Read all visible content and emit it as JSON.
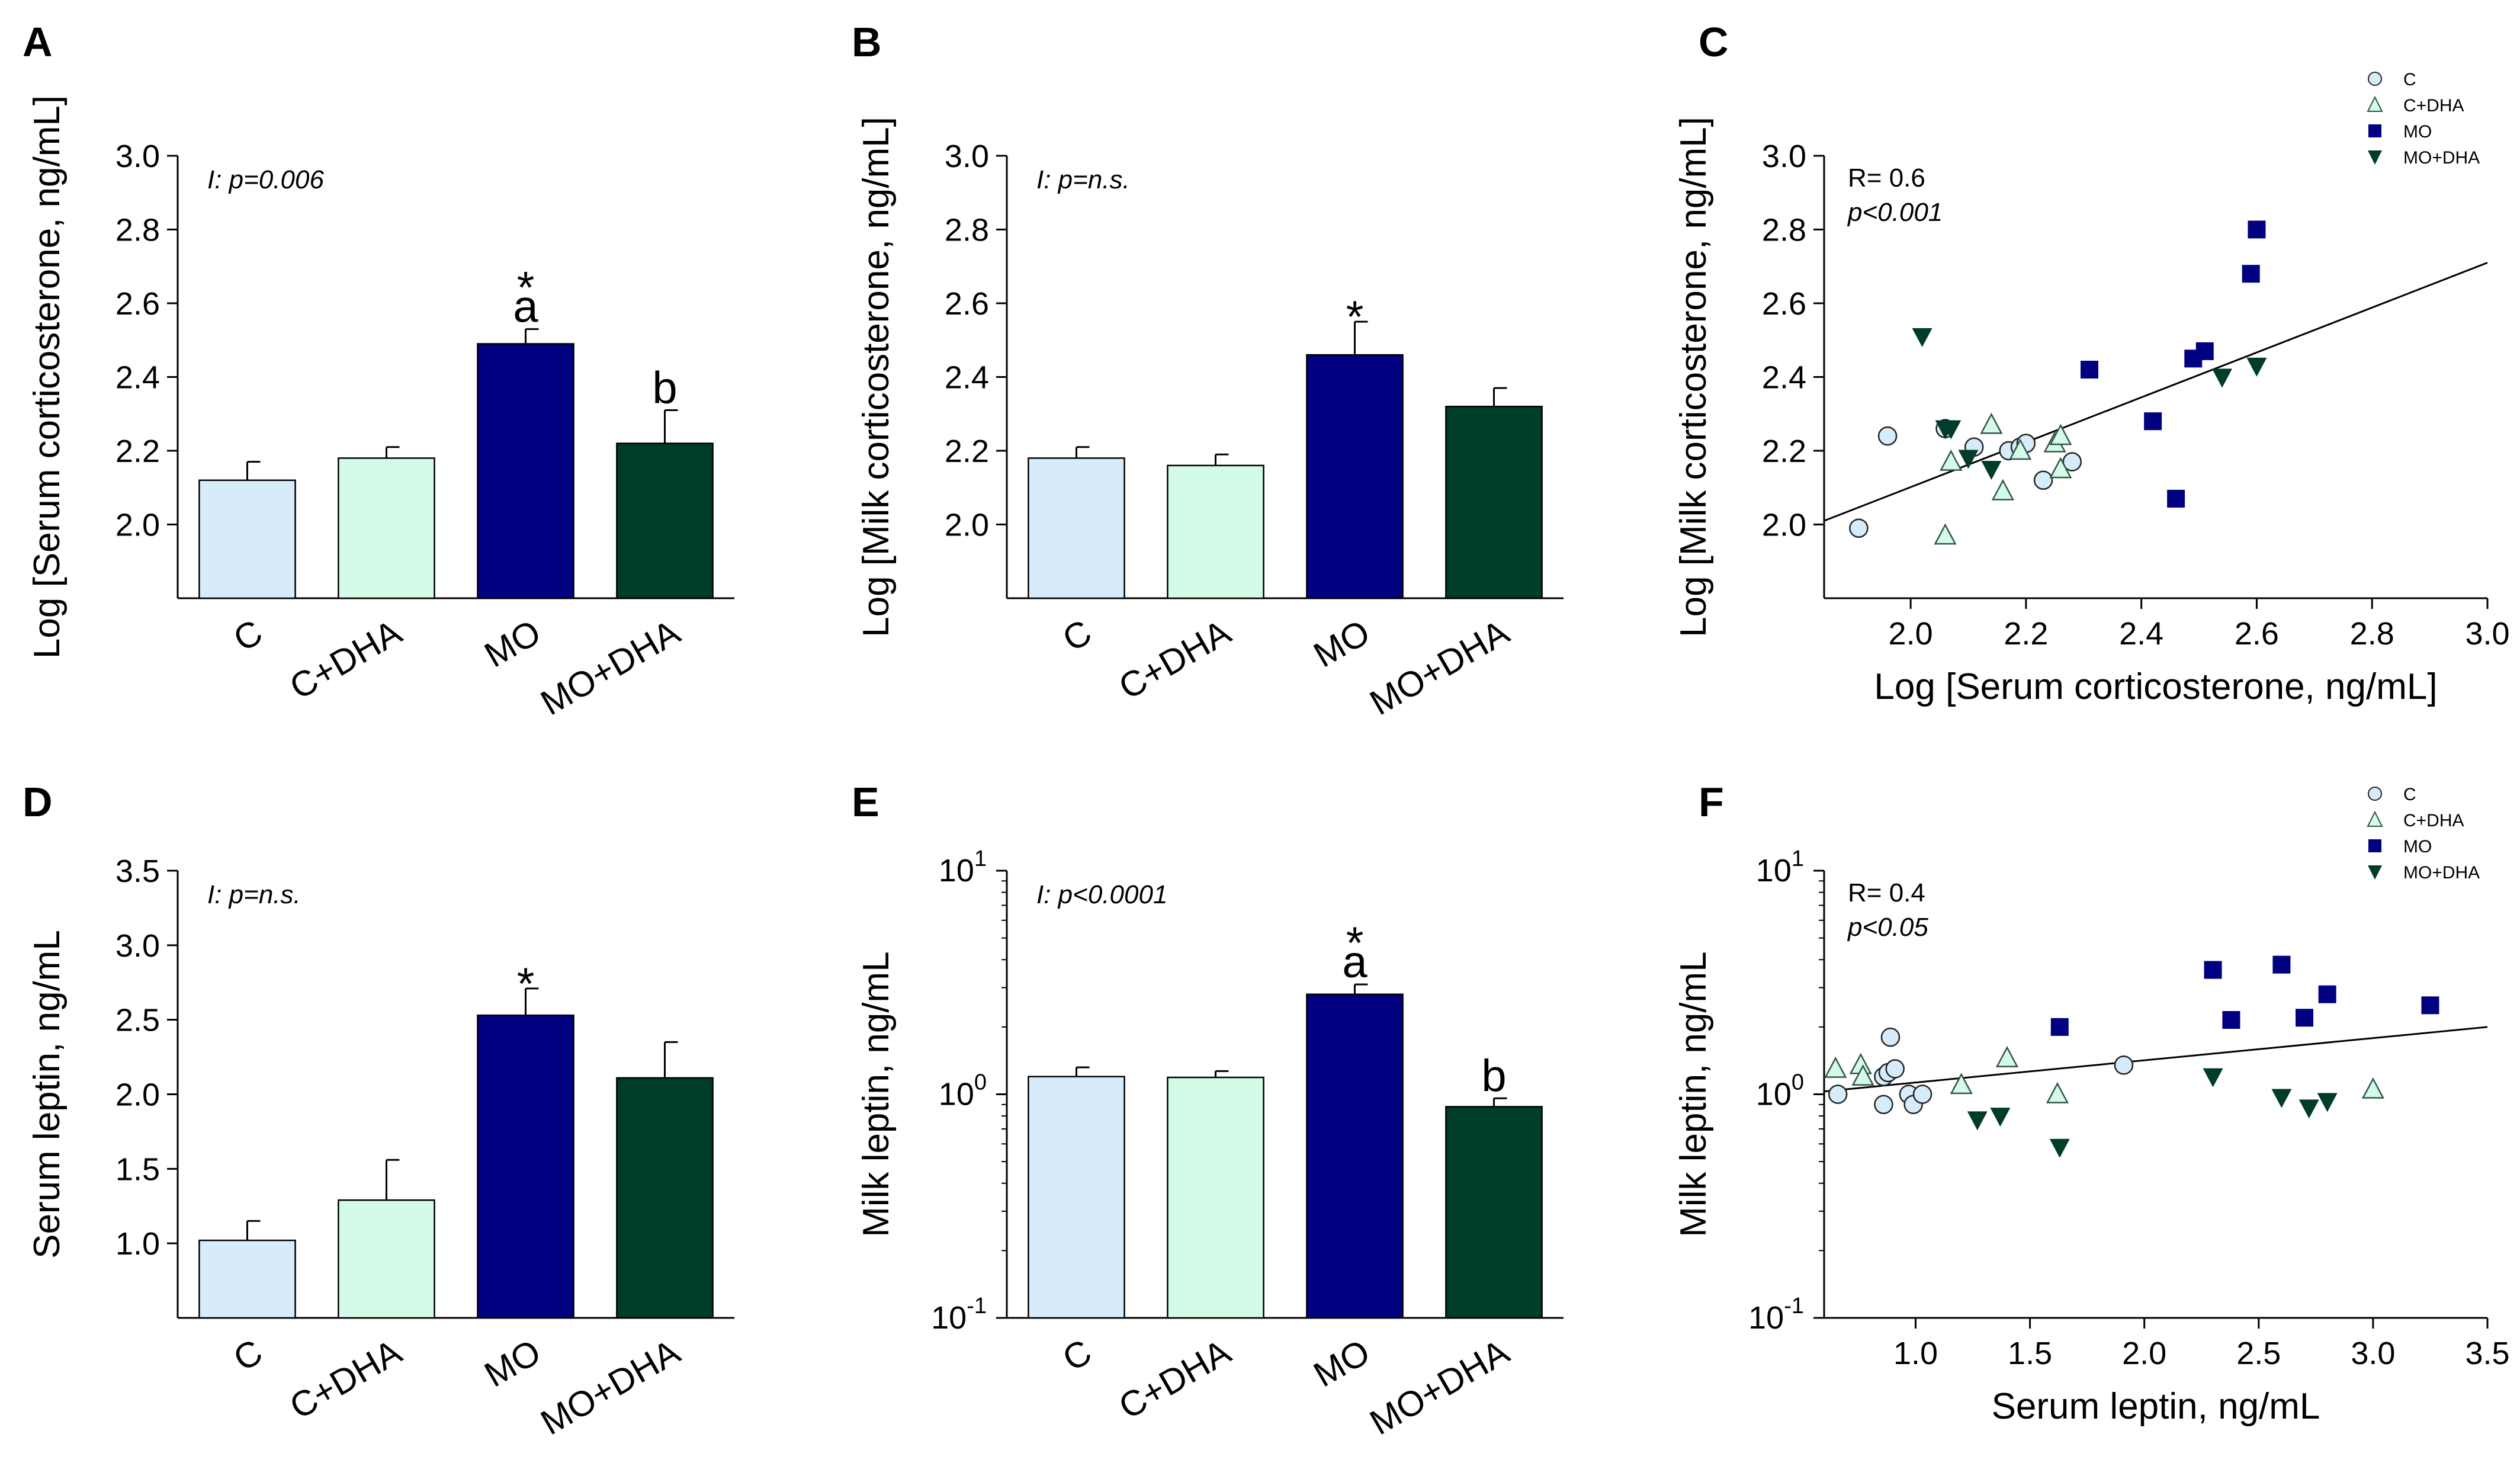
{
  "chart_data": [
    {
      "id": "A",
      "type": "bar",
      "panel_label": "A",
      "categories": [
        "C",
        "C+DHA",
        "MO",
        "MO+DHA"
      ],
      "values": [
        2.12,
        2.18,
        2.49,
        2.22
      ],
      "errors": [
        0.05,
        0.03,
        0.04,
        0.09
      ],
      "colors": [
        "#d6ecfb",
        "#d3fbe8",
        "#000080",
        "#003c2a"
      ],
      "ylabel": "Log [Serum corticosterone, ng/mL]",
      "ylim": [
        1.8,
        3.0
      ],
      "yticks": [
        "2.0",
        "2.2",
        "2.4",
        "2.6",
        "2.8",
        "3.0"
      ],
      "annotation": "I: p=0.006",
      "sig_labels": [
        {
          "category": "MO",
          "text": "*"
        },
        {
          "category": "MO",
          "text": "a"
        },
        {
          "category": "MO+DHA",
          "text": "b"
        }
      ]
    },
    {
      "id": "B",
      "type": "bar",
      "panel_label": "B",
      "categories": [
        "C",
        "C+DHA",
        "MO",
        "MO+DHA"
      ],
      "values": [
        2.18,
        2.16,
        2.46,
        2.32
      ],
      "errors": [
        0.03,
        0.03,
        0.09,
        0.05
      ],
      "colors": [
        "#d6ecfb",
        "#d3fbe8",
        "#000080",
        "#003c2a"
      ],
      "ylabel": "Log [Milk corticosterone, ng/mL]",
      "ylim": [
        1.8,
        3.0
      ],
      "yticks": [
        "2.0",
        "2.2",
        "2.4",
        "2.6",
        "2.8",
        "3.0"
      ],
      "annotation": "I: p=n.s.",
      "sig_labels": [
        {
          "category": "MO",
          "text": "*"
        }
      ]
    },
    {
      "id": "C",
      "type": "scatter",
      "panel_label": "C",
      "xlabel": "Log [Serum corticosterone, ng/mL]",
      "ylabel": "Log [Milk corticosterone, ng/mL]",
      "xlim": [
        1.85,
        3.0
      ],
      "ylim": [
        1.8,
        3.0
      ],
      "xticks": [
        "2.0",
        "2.2",
        "2.4",
        "2.6",
        "2.8",
        "3.0"
      ],
      "yticks": [
        "2.0",
        "2.2",
        "2.4",
        "2.6",
        "2.8",
        "3.0"
      ],
      "r_text": "R= 0.6",
      "p_text": "p<0.001",
      "fit": {
        "x0": 1.85,
        "y0": 2.01,
        "x1": 3.0,
        "y1": 2.71
      },
      "legend": [
        "C",
        "C+DHA",
        "MO",
        "MO+DHA"
      ],
      "series": [
        {
          "name": "C",
          "marker": "circle",
          "color": "#d6ecfb",
          "x": [
            1.91,
            1.96,
            2.06,
            2.11,
            2.17,
            2.19,
            2.2,
            2.23,
            2.28
          ],
          "y": [
            1.99,
            2.24,
            2.26,
            2.21,
            2.2,
            2.21,
            2.22,
            2.12,
            2.17
          ]
        },
        {
          "name": "C+DHA",
          "marker": "triangle-up",
          "color": "#d3fbe8",
          "x": [
            2.06,
            2.07,
            2.14,
            2.16,
            2.19,
            2.25,
            2.26,
            2.26
          ],
          "y": [
            1.97,
            2.17,
            2.27,
            2.09,
            2.2,
            2.22,
            2.24,
            2.15
          ]
        },
        {
          "name": "MO",
          "marker": "square",
          "color": "#000080",
          "x": [
            2.31,
            2.42,
            2.46,
            2.49,
            2.51,
            2.59,
            2.6
          ],
          "y": [
            2.42,
            2.28,
            2.07,
            2.45,
            2.47,
            2.68,
            2.8
          ]
        },
        {
          "name": "MO+DHA",
          "marker": "triangle-down",
          "color": "#003c2a",
          "x": [
            2.02,
            2.06,
            2.07,
            2.1,
            2.14,
            2.54,
            2.6
          ],
          "y": [
            2.51,
            2.26,
            2.26,
            2.18,
            2.15,
            2.4,
            2.43
          ]
        }
      ]
    },
    {
      "id": "D",
      "type": "bar",
      "panel_label": "D",
      "categories": [
        "C",
        "C+DHA",
        "MO",
        "MO+DHA"
      ],
      "values": [
        1.02,
        1.29,
        2.53,
        2.11
      ],
      "errors": [
        0.13,
        0.27,
        0.18,
        0.24
      ],
      "colors": [
        "#d6ecfb",
        "#d3fbe8",
        "#000080",
        "#003c2a"
      ],
      "ylabel": "Serum leptin, ng/mL",
      "ylim": [
        0.5,
        3.5
      ],
      "yticks": [
        "1.0",
        "1.5",
        "2.0",
        "2.5",
        "3.0",
        "3.5"
      ],
      "annotation": "I: p=n.s.",
      "sig_labels": [
        {
          "category": "MO",
          "text": "*"
        }
      ]
    },
    {
      "id": "E",
      "type": "bar",
      "panel_label": "E",
      "yscale": "log",
      "categories": [
        "C",
        "C+DHA",
        "MO",
        "MO+DHA"
      ],
      "values": [
        1.2,
        1.19,
        2.8,
        0.88
      ],
      "errors": [
        0.12,
        0.08,
        0.3,
        0.08
      ],
      "colors": [
        "#d6ecfb",
        "#d3fbe8",
        "#000080",
        "#003c2a"
      ],
      "ylabel": "Milk leptin, ng/mL",
      "ylim": [
        0.1,
        10
      ],
      "ytick_base": "10",
      "ytick_exponents": [
        "-1",
        "0",
        "1"
      ],
      "annotation": "I: p<0.0001",
      "sig_labels": [
        {
          "category": "MO",
          "text": "*"
        },
        {
          "category": "MO",
          "text": "a"
        },
        {
          "category": "MO+DHA",
          "text": "b"
        }
      ]
    },
    {
      "id": "F",
      "type": "scatter",
      "panel_label": "F",
      "yscale": "log",
      "xlabel": "Serum leptin, ng/mL",
      "ylabel": "Milk leptin, ng/mL",
      "xlim": [
        0.6,
        3.5
      ],
      "ylim": [
        0.1,
        10
      ],
      "xticks": [
        "1.0",
        "1.5",
        "2.0",
        "2.5",
        "3.0",
        "3.5"
      ],
      "ytick_base": "10",
      "ytick_exponents": [
        "-1",
        "0",
        "1"
      ],
      "r_text": "R= 0.4",
      "p_text": "p<0.05",
      "fit": {
        "x0": 0.6,
        "y0": 1.03,
        "x1": 3.5,
        "y1": 2.0
      },
      "legend": [
        "C",
        "C+DHA",
        "MO",
        "MO+DHA"
      ],
      "series": [
        {
          "name": "C",
          "marker": "circle",
          "color": "#d6ecfb",
          "x": [
            0.66,
            0.86,
            0.86,
            0.88,
            0.89,
            0.91,
            0.97,
            0.99,
            1.03,
            1.91
          ],
          "y": [
            1.0,
            1.2,
            0.9,
            1.25,
            1.8,
            1.3,
            1.0,
            0.9,
            1.0,
            1.35
          ]
        },
        {
          "name": "C+DHA",
          "marker": "triangle-up",
          "color": "#d3fbe8",
          "x": [
            0.65,
            0.76,
            0.77,
            1.2,
            1.4,
            1.62,
            3.0
          ],
          "y": [
            1.3,
            1.35,
            1.2,
            1.1,
            1.45,
            1.0,
            1.05
          ]
        },
        {
          "name": "MO",
          "marker": "square",
          "color": "#000080",
          "x": [
            1.63,
            2.3,
            2.38,
            2.6,
            2.7,
            2.8,
            3.25
          ],
          "y": [
            2.0,
            3.6,
            2.15,
            3.8,
            2.2,
            2.8,
            2.5
          ]
        },
        {
          "name": "MO+DHA",
          "marker": "triangle-down",
          "color": "#003c2a",
          "x": [
            1.27,
            1.37,
            1.63,
            2.3,
            2.6,
            2.72,
            2.8
          ],
          "y": [
            0.77,
            0.8,
            0.58,
            1.2,
            0.97,
            0.87,
            0.93
          ]
        }
      ]
    }
  ]
}
